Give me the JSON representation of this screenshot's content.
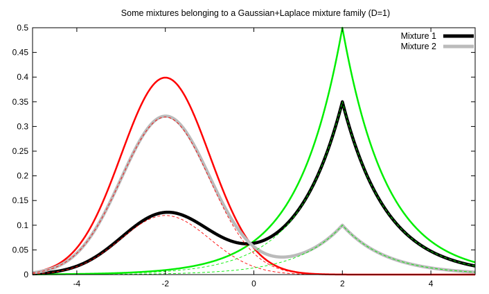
{
  "chart_data": {
    "type": "line",
    "title": "Some mixtures belonging to a Gaussian+Laplace mixture family (D=1)",
    "xlabel": "",
    "ylabel": "",
    "xlim": [
      -5,
      5
    ],
    "ylim": [
      0,
      0.5
    ],
    "x_ticks": [
      "-4",
      "-2",
      "0",
      "2",
      "4"
    ],
    "x_tick_values": [
      -4,
      -2,
      0,
      2,
      4
    ],
    "y_ticks": [
      "0",
      "0.05",
      "0.1",
      "0.15",
      "0.2",
      "0.25",
      "0.3",
      "0.35",
      "0.4",
      "0.45",
      "0.5"
    ],
    "y_tick_values": [
      0,
      0.05,
      0.1,
      0.15,
      0.2,
      0.25,
      0.3,
      0.35,
      0.4,
      0.45,
      0.5
    ],
    "grid": false,
    "legend_position": "top-right",
    "components": {
      "gaussian": {
        "mu": -2,
        "sigma": 1,
        "color": "#ff0000"
      },
      "laplace": {
        "mu": 2,
        "b": 1,
        "color": "#00ee00"
      }
    },
    "series": [
      {
        "name": "",
        "kind": "gaussian-component",
        "weight": 1.0,
        "color": "#ff0000",
        "style": "solid"
      },
      {
        "name": "",
        "kind": "laplace-component",
        "weight": 1.0,
        "color": "#00ee00",
        "style": "solid"
      },
      {
        "name": "Mixture 1",
        "kind": "mixture",
        "weights": [
          0.3,
          0.7
        ],
        "color": "#000000",
        "style": "solid"
      },
      {
        "name": "Mixture 2",
        "kind": "mixture",
        "weights": [
          0.8,
          0.2
        ],
        "color": "#bbbbbb",
        "style": "solid"
      },
      {
        "name": "",
        "kind": "gaussian-component",
        "weight": 0.3,
        "color": "#ff0000",
        "style": "dashed"
      },
      {
        "name": "",
        "kind": "laplace-component",
        "weight": 0.7,
        "color": "#00ee00",
        "style": "dashed"
      },
      {
        "name": "",
        "kind": "gaussian-component",
        "weight": 0.8,
        "color": "#ff0000",
        "style": "dashed"
      },
      {
        "name": "",
        "kind": "laplace-component",
        "weight": 0.2,
        "color": "#00ee00",
        "style": "dashed"
      }
    ],
    "legend": [
      {
        "label": "Mixture 1",
        "color": "#000000"
      },
      {
        "label": "Mixture 2",
        "color": "#bbbbbb"
      }
    ]
  }
}
